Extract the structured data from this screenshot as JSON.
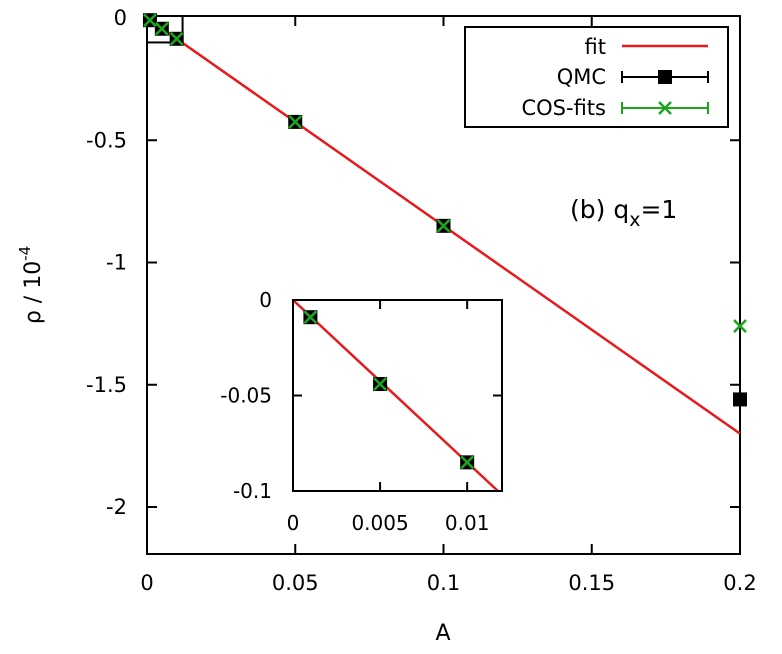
{
  "chart_data": [
    {
      "type": "scatter",
      "name": "main",
      "xlabel": "A",
      "ylabel": "ρ / 10",
      "ylabel_exp": "-4",
      "xlim": [
        0,
        0.2
      ],
      "ylim": [
        -2.2,
        0
      ],
      "xticks": [
        0,
        0.05,
        0.1,
        0.15,
        0.2
      ],
      "xtick_labels": [
        "0",
        "0.05",
        "0.1",
        "0.15",
        "0.2"
      ],
      "yticks": [
        0,
        -0.5,
        -1,
        -1.5,
        -2
      ],
      "ytick_labels": [
        "0",
        "-0.5",
        "-1",
        "-1.5",
        "-2"
      ],
      "annotation": {
        "text": "(b) q",
        "sub": "x",
        "suffix": "=1"
      },
      "legend": {
        "placement": "top-right",
        "entries": [
          "fit",
          "QMC",
          "COS-fits"
        ]
      },
      "fit": {
        "name": "fit",
        "color": "#e8191a",
        "slope": -8.5,
        "intercept": 0.0
      },
      "series": [
        {
          "name": "QMC",
          "color": "#000000",
          "marker": "square",
          "points": [
            [
              0.001,
              -0.009
            ],
            [
              0.005,
              -0.044
            ],
            [
              0.01,
              -0.085
            ],
            [
              0.05,
              -0.425
            ],
            [
              0.1,
              -0.85
            ],
            [
              0.2,
              -1.56
            ]
          ]
        },
        {
          "name": "COS-fits",
          "color": "#1ea51e",
          "marker": "cross",
          "points": [
            [
              0.001,
              -0.009
            ],
            [
              0.005,
              -0.044
            ],
            [
              0.01,
              -0.085
            ],
            [
              0.05,
              -0.425
            ],
            [
              0.1,
              -0.85
            ],
            [
              0.2,
              -1.26
            ]
          ]
        }
      ]
    },
    {
      "type": "scatter",
      "name": "inset",
      "xlim": [
        0,
        0.012
      ],
      "ylim": [
        -0.1,
        0
      ],
      "xticks": [
        0,
        0.005,
        0.01
      ],
      "xtick_labels": [
        "0",
        "0.005",
        "0.01"
      ],
      "yticks": [
        0,
        -0.05,
        -0.1
      ],
      "ytick_labels": [
        "0",
        "-0.05",
        "-0.1"
      ],
      "fit": {
        "slope": -8.5,
        "intercept": 0.0
      },
      "series": [
        {
          "name": "QMC",
          "points": [
            [
              0.001,
              -0.009
            ],
            [
              0.005,
              -0.044
            ],
            [
              0.01,
              -0.085
            ]
          ]
        },
        {
          "name": "COS-fits",
          "points": [
            [
              0.001,
              -0.009
            ],
            [
              0.005,
              -0.044
            ],
            [
              0.01,
              -0.085
            ]
          ]
        }
      ]
    }
  ]
}
